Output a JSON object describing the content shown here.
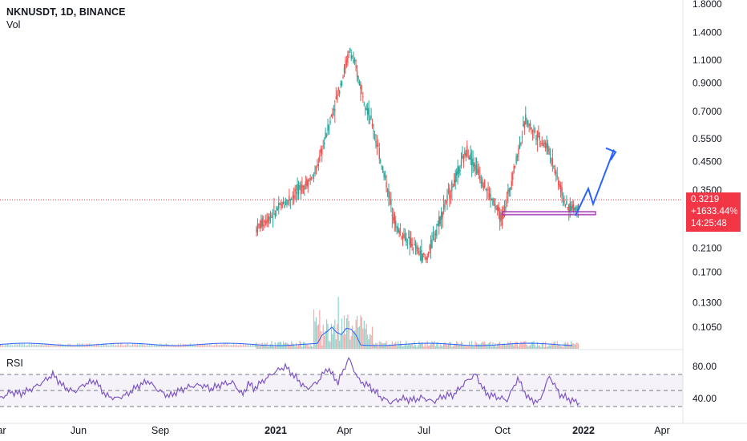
{
  "chart_data": {
    "type": "candlestick",
    "symbol_line": "NKNUSDT, 1D, BINANCE",
    "volume_label": "Vol",
    "rsi_label": "RSI",
    "y_axis": {
      "scale": "log",
      "ticks": [
        1.8,
        1.4,
        1.1,
        0.9,
        0.7,
        0.55,
        0.45,
        0.35,
        0.21,
        0.17,
        0.13,
        0.105
      ],
      "tick_labels": [
        "1.8000",
        "1.4000",
        "1.1000",
        "0.9000",
        "0.7000",
        "0.5500",
        "0.4500",
        "0.3500",
        "0.2100",
        "0.1700",
        "0.1300",
        "0.1050"
      ]
    },
    "rsi_axis": {
      "ticks": [
        80,
        40
      ],
      "tick_labels": [
        "80.00",
        "40.00"
      ],
      "bands": [
        70,
        50,
        30
      ]
    },
    "x_axis": {
      "tick_labels": [
        "ar",
        "Jun",
        "Sep",
        "2021",
        "Apr",
        "Jul",
        "Oct",
        "2022",
        "Apr"
      ]
    },
    "last_price": {
      "price": "0.3219",
      "change": "+1633.44%",
      "countdown": "14:25:48",
      "value": 0.3219
    },
    "colors": {
      "up": "#26a69a",
      "down": "#ef5350",
      "rsi_line": "#7e57c2",
      "projection": "#2962ff",
      "support_box": "#9c27b0",
      "price_line": "#f23645"
    },
    "price_path": [
      [
        200,
        0.25
      ],
      [
        250,
        0.4
      ],
      [
        280,
        1.2
      ],
      [
        300,
        0.6
      ],
      [
        320,
        0.25
      ],
      [
        345,
        0.19
      ],
      [
        360,
        0.3
      ],
      [
        380,
        0.5
      ],
      [
        400,
        0.33
      ],
      [
        410,
        0.27
      ],
      [
        430,
        0.65
      ],
      [
        450,
        0.5
      ],
      [
        465,
        0.3
      ],
      [
        475,
        0.3
      ]
    ],
    "projection_path": [
      [
        475,
        0.28
      ],
      [
        482,
        0.36
      ],
      [
        488,
        0.31
      ],
      [
        502,
        0.5
      ]
    ],
    "support_zone": {
      "x_start": 410,
      "x_end": 495,
      "price_low": 0.282,
      "price_high": 0.29
    },
    "volume_note": "volume bars along bottom of price pane with spikes near 2021 Apr",
    "rsi_series": [
      [
        0,
        40
      ],
      [
        20,
        48
      ],
      [
        40,
        46
      ],
      [
        60,
        52
      ],
      [
        80,
        60
      ],
      [
        100,
        70
      ],
      [
        120,
        55
      ],
      [
        140,
        48
      ],
      [
        160,
        58
      ],
      [
        180,
        62
      ],
      [
        200,
        44
      ],
      [
        220,
        40
      ],
      [
        240,
        45
      ],
      [
        260,
        55
      ],
      [
        280,
        62
      ],
      [
        300,
        50
      ],
      [
        320,
        43
      ],
      [
        340,
        50
      ],
      [
        360,
        55
      ],
      [
        380,
        57
      ],
      [
        400,
        52
      ],
      [
        420,
        58
      ],
      [
        440,
        60
      ],
      [
        460,
        44
      ],
      [
        470,
        60
      ],
      [
        480,
        52
      ],
      [
        500,
        63
      ],
      [
        520,
        73
      ],
      [
        540,
        80
      ],
      [
        560,
        66
      ],
      [
        580,
        52
      ],
      [
        600,
        60
      ],
      [
        620,
        78
      ],
      [
        640,
        60
      ],
      [
        660,
        90
      ],
      [
        680,
        62
      ],
      [
        700,
        55
      ],
      [
        720,
        42
      ],
      [
        740,
        35
      ],
      [
        760,
        40
      ],
      [
        780,
        38
      ],
      [
        800,
        41
      ],
      [
        820,
        36
      ],
      [
        840,
        43
      ],
      [
        860,
        45
      ],
      [
        880,
        60
      ],
      [
        900,
        70
      ],
      [
        920,
        46
      ],
      [
        940,
        42
      ],
      [
        960,
        38
      ],
      [
        980,
        65
      ],
      [
        1000,
        40
      ],
      [
        1020,
        35
      ],
      [
        1040,
        68
      ],
      [
        1060,
        45
      ],
      [
        1080,
        38
      ],
      [
        1100,
        34
      ]
    ]
  }
}
